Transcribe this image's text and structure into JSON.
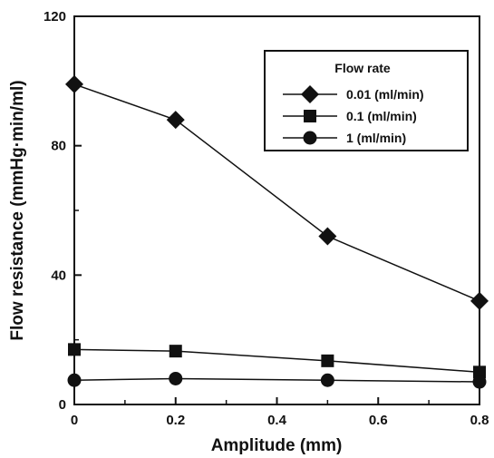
{
  "chart_data": {
    "type": "line",
    "xlabel": "Amplitude (mm)",
    "ylabel": "Flow resistance (mmHg·min/ml)",
    "xlim": [
      0,
      0.8
    ],
    "ylim": [
      0,
      120
    ],
    "xticks": [
      "0",
      "0.2",
      "0.4",
      "0.6",
      "0.8"
    ],
    "yticks": [
      "0",
      "40",
      "80",
      "120"
    ],
    "x": [
      0,
      0.2,
      0.5,
      0.8
    ],
    "grid": false,
    "legend_title": "Flow rate",
    "legend_position": "top-right",
    "series": [
      {
        "name": "0.01 (ml/min)",
        "marker": "diamond",
        "values": [
          99,
          88,
          52,
          32
        ]
      },
      {
        "name": "0.1 (ml/min)",
        "marker": "square",
        "values": [
          17,
          16.5,
          13.5,
          10
        ]
      },
      {
        "name": "1 (ml/min)",
        "marker": "circle",
        "values": [
          7.5,
          8,
          7.5,
          7
        ]
      }
    ]
  }
}
